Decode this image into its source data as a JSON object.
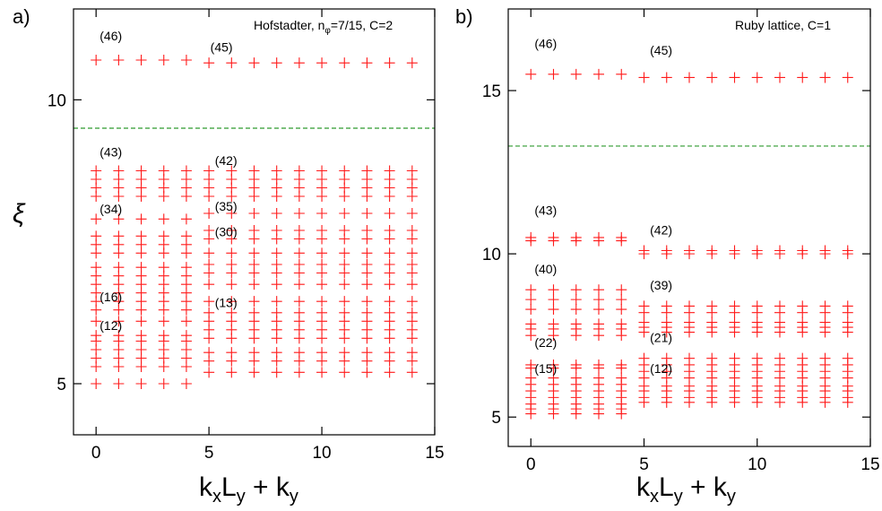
{
  "chart_data": [
    {
      "panel": "a)",
      "type": "scatter",
      "annotation": "Hofstadter, n_φ=7/15, C=2",
      "xlabel": "k_xL_y + k_y",
      "ylabel": "ξ",
      "xlim": [
        -1,
        15
      ],
      "ylim": [
        4.1,
        11.6
      ],
      "xticks": [
        0,
        5,
        10,
        15
      ],
      "yticks": [
        5,
        10
      ],
      "gap_line_y": 9.5,
      "sector_labels": [
        {
          "text": "(46)",
          "x": 0.4,
          "y": 11.05
        },
        {
          "text": "(45)",
          "x": 5.3,
          "y": 10.85
        },
        {
          "text": "(43)",
          "x": 0.4,
          "y": 9.0
        },
        {
          "text": "(42)",
          "x": 5.5,
          "y": 8.85
        },
        {
          "text": "(34)",
          "x": 0.4,
          "y": 8.0
        },
        {
          "text": "(35)",
          "x": 5.5,
          "y": 8.05
        },
        {
          "text": "(30)",
          "x": 5.5,
          "y": 7.6
        },
        {
          "text": "(16)",
          "x": 0.4,
          "y": 6.45
        },
        {
          "text": "(13)",
          "x": 5.5,
          "y": 6.35
        },
        {
          "text": "(12)",
          "x": 0.4,
          "y": 5.95
        }
      ],
      "series": [
        {
          "x_from": 0,
          "x_to": 4,
          "y": [
            10.7,
            8.75,
            8.6,
            8.45,
            8.3,
            7.9,
            7.6,
            7.45,
            7.3,
            7.05,
            6.9,
            6.75,
            6.6,
            6.45,
            6.3,
            6.1,
            5.85,
            5.75,
            5.6,
            5.45,
            5.3,
            5.0
          ]
        },
        {
          "x_from": 5,
          "x_to": 14,
          "y": [
            10.65,
            8.75,
            8.6,
            8.45,
            8.3,
            8.0,
            7.7,
            7.55,
            7.3,
            7.1,
            6.95,
            6.75,
            6.45,
            6.25,
            6.1,
            5.95,
            5.8,
            5.55,
            5.4,
            5.2
          ]
        }
      ]
    },
    {
      "panel": "b)",
      "type": "scatter",
      "annotation": "Ruby lattice, C=1",
      "xlabel": "k_xL_y + k_y",
      "ylabel": "",
      "xlim": [
        -1,
        15
      ],
      "ylim": [
        4.1,
        17.5
      ],
      "xticks": [
        0,
        5,
        10,
        15
      ],
      "yticks": [
        5,
        10,
        15
      ],
      "gap_line_y": 13.3,
      "sector_labels": [
        {
          "text": "(46)",
          "x": 0.4,
          "y": 16.3
        },
        {
          "text": "(45)",
          "x": 5.5,
          "y": 16.1
        },
        {
          "text": "(43)",
          "x": 0.4,
          "y": 11.2
        },
        {
          "text": "(42)",
          "x": 5.5,
          "y": 10.6
        },
        {
          "text": "(40)",
          "x": 0.4,
          "y": 9.4
        },
        {
          "text": "(39)",
          "x": 5.5,
          "y": 8.9
        },
        {
          "text": "(22)",
          "x": 0.4,
          "y": 7.15
        },
        {
          "text": "(21)",
          "x": 5.5,
          "y": 7.3
        },
        {
          "text": "(15)",
          "x": 0.4,
          "y": 6.35
        },
        {
          "text": "(12)",
          "x": 5.5,
          "y": 6.35
        }
      ],
      "series": [
        {
          "x_from": 0,
          "x_to": 4,
          "y": [
            15.5,
            10.5,
            10.4,
            8.9,
            8.6,
            8.3,
            7.85,
            7.7,
            7.5,
            6.6,
            6.5,
            6.2,
            6.0,
            5.8,
            5.6,
            5.4,
            5.25,
            5.1
          ]
        },
        {
          "x_from": 5,
          "x_to": 14,
          "y": [
            15.4,
            10.1,
            10.0,
            8.4,
            8.2,
            7.9,
            7.75,
            7.6,
            6.8,
            6.6,
            6.4,
            6.2,
            5.95,
            5.8,
            5.6,
            5.45
          ]
        }
      ]
    }
  ]
}
